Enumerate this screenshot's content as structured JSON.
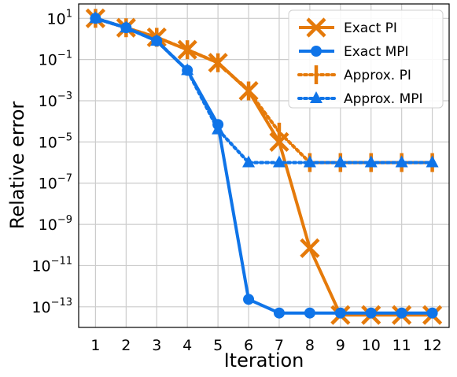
{
  "chart_data": {
    "type": "line",
    "title": "",
    "xlabel": "Iteration",
    "ylabel": "Relative error",
    "yscale": "log",
    "xlim": [
      0.45,
      12.55
    ],
    "ylim": [
      1e-14,
      50
    ],
    "grid": true,
    "legend_position": "top-right",
    "x_ticks": [
      "1",
      "2",
      "3",
      "4",
      "5",
      "6",
      "7",
      "8",
      "9",
      "10",
      "11",
      "12"
    ],
    "y_ticks": [
      {
        "value": 10,
        "base": "10",
        "exp": "1"
      },
      {
        "value": 0.1,
        "base": "10",
        "exp": "−1"
      },
      {
        "value": 0.001,
        "base": "10",
        "exp": "−3"
      },
      {
        "value": 1e-05,
        "base": "10",
        "exp": "−5"
      },
      {
        "value": 1e-07,
        "base": "10",
        "exp": "−7"
      },
      {
        "value": 1e-09,
        "base": "10",
        "exp": "−9"
      },
      {
        "value": 1e-11,
        "base": "10",
        "exp": "−11"
      },
      {
        "value": 1e-13,
        "base": "10",
        "exp": "−13"
      }
    ],
    "x": [
      1,
      2,
      3,
      4,
      5,
      6,
      7,
      8,
      9,
      10,
      11,
      12
    ],
    "series": [
      {
        "name": "Exact PI",
        "color": "#e57a0a",
        "line": "solid",
        "marker": "x",
        "values": [
          10,
          3.5,
          1.2,
          0.3,
          0.07,
          0.003,
          1e-05,
          7e-11,
          4e-14,
          4e-14,
          4e-14,
          4e-14
        ]
      },
      {
        "name": "Exact MPI",
        "color": "#0f74e8",
        "line": "solid",
        "marker": "circle",
        "values": [
          10,
          3.5,
          0.8,
          0.03,
          7e-05,
          2.3e-13,
          5e-14,
          5e-14,
          5e-14,
          5e-14,
          5e-14,
          5e-14
        ]
      },
      {
        "name": "Approx. PI",
        "color": "#e57a0a",
        "line": "dotted",
        "marker": "vline",
        "values": [
          10,
          3.5,
          1.2,
          0.3,
          0.07,
          0.003,
          3e-05,
          1e-06,
          1e-06,
          1e-06,
          1e-06,
          1e-06
        ]
      },
      {
        "name": "Approx. MPI",
        "color": "#0f74e8",
        "line": "dotted",
        "marker": "triangle",
        "values": [
          10,
          3.5,
          0.8,
          0.03,
          4e-05,
          1e-06,
          1e-06,
          1e-06,
          1e-06,
          1e-06,
          1e-06,
          1e-06
        ]
      }
    ]
  }
}
